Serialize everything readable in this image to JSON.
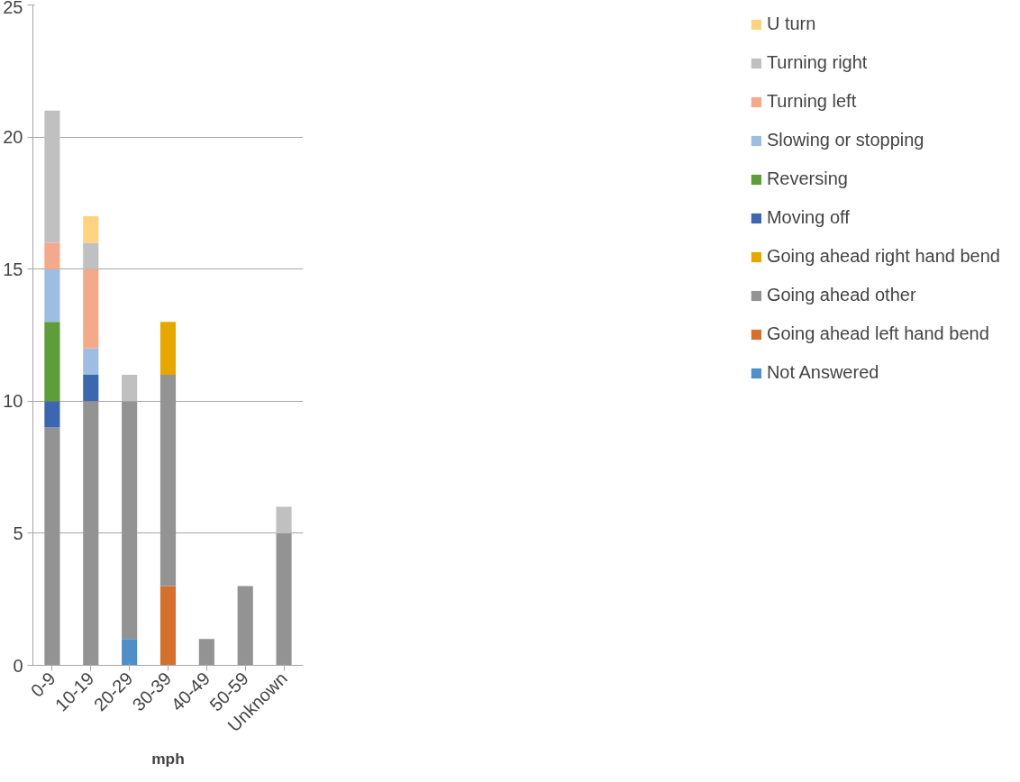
{
  "chart_data": {
    "type": "bar",
    "stacked": true,
    "xlabel": "mph",
    "categories": [
      "0-9",
      "10-19",
      "20-29",
      "30-39",
      "40-49",
      "50-59",
      "Unknown"
    ],
    "ylim": [
      0,
      25
    ],
    "yticks": [
      0,
      5,
      10,
      15,
      20,
      25
    ],
    "grid": "y",
    "legend": "right",
    "series": [
      {
        "name": "Not Answered",
        "color": "#4f8fc9",
        "values": [
          null,
          null,
          1,
          null,
          null,
          null,
          null
        ]
      },
      {
        "name": "Going ahead left hand bend",
        "color": "#d4702b",
        "values": [
          null,
          null,
          null,
          3,
          null,
          null,
          null
        ]
      },
      {
        "name": "Going ahead other",
        "color": "#939393",
        "values": [
          9,
          10,
          9,
          8,
          1,
          3,
          5
        ]
      },
      {
        "name": "Going ahead right hand bend",
        "color": "#e6a800",
        "values": [
          null,
          null,
          null,
          2,
          null,
          null,
          null
        ]
      },
      {
        "name": "Moving off",
        "color": "#3c66b0",
        "values": [
          1,
          1,
          null,
          null,
          null,
          null,
          null
        ]
      },
      {
        "name": "Reversing",
        "color": "#5f9c3a",
        "values": [
          3,
          null,
          null,
          null,
          null,
          null,
          null
        ]
      },
      {
        "name": "Slowing or stopping",
        "color": "#9dbde3",
        "values": [
          2,
          1,
          null,
          null,
          null,
          null,
          null
        ]
      },
      {
        "name": "Turning left",
        "color": "#f4a98a",
        "values": [
          1,
          3,
          null,
          null,
          null,
          null,
          null
        ]
      },
      {
        "name": "Turning right",
        "color": "#c0c0c0",
        "values": [
          5,
          1,
          1,
          null,
          null,
          null,
          1
        ]
      },
      {
        "name": "U turn",
        "color": "#ffd37f",
        "values": [
          null,
          1,
          null,
          null,
          null,
          null,
          null
        ]
      }
    ]
  }
}
